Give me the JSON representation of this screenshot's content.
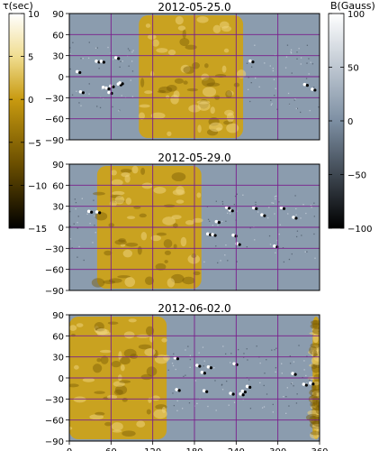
{
  "chart_data": {
    "type": "heatmap",
    "panels": [
      {
        "title": "2012-05-25.0",
        "tau_span_deg": [
          100,
          250
        ],
        "cyclic_span": false
      },
      {
        "title": "2012-05-29.0",
        "tau_span_deg": [
          40,
          190
        ],
        "cyclic_span": false
      },
      {
        "title": "2012-06-02.0",
        "tau_span_deg": [
          350,
          140
        ],
        "cyclic_span": true
      }
    ],
    "x_ticks": [
      "0",
      "60",
      "120",
      "180",
      "240",
      "300",
      "360"
    ],
    "y_ticks": [
      "90",
      "60",
      "30",
      "0",
      "−30",
      "−60",
      "−90"
    ],
    "xlim": [
      0,
      360
    ],
    "ylim": [
      -90,
      90
    ],
    "grid_color": "#7a1e8c",
    "tau_colorbar": {
      "label": "τ(sec)",
      "ticks": [
        "10",
        "5",
        "0",
        "−5",
        "−10",
        "−15"
      ],
      "range": [
        -15,
        10
      ],
      "colors": [
        "#000000",
        "#6b4f00",
        "#c89a10",
        "#f0dd90",
        "#ffffff"
      ]
    },
    "b_colorbar": {
      "label": "B(Gauss)",
      "ticks": [
        "100",
        "50",
        "0",
        "−50",
        "−100"
      ],
      "range": [
        -100,
        100
      ],
      "colors": [
        "#000000",
        "#7d8fa3",
        "#ffffff"
      ]
    }
  }
}
